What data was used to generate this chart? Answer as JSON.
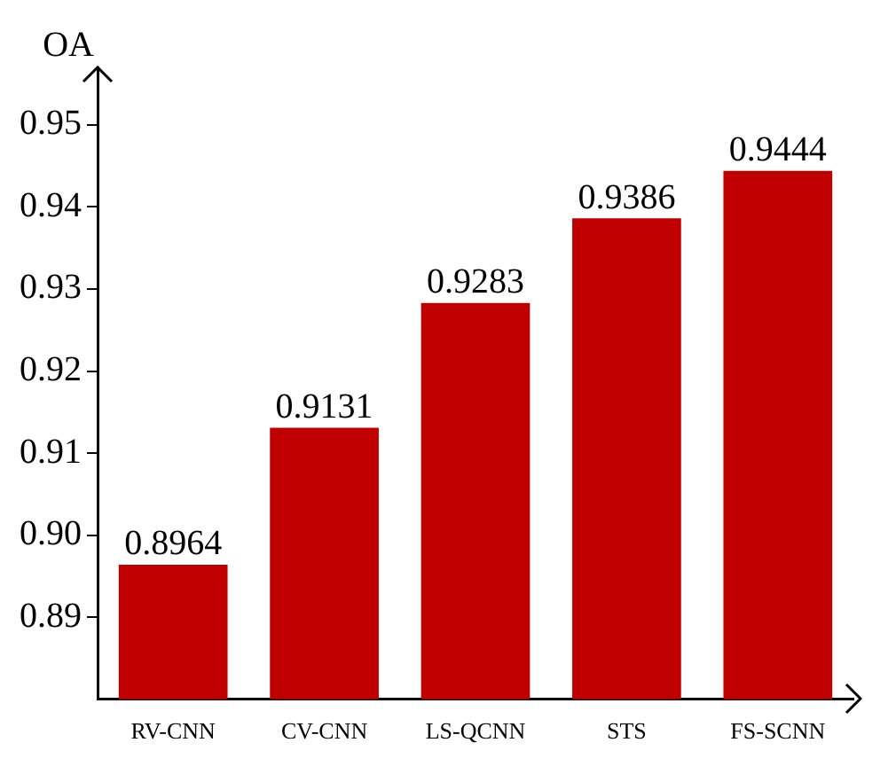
{
  "chart_data": {
    "type": "bar",
    "ylabel": "OA",
    "categories": [
      "RV-CNN",
      "CV-CNN",
      "LS-QCNN",
      "STS",
      "FS-SCNN"
    ],
    "values": [
      0.8964,
      0.9131,
      0.9283,
      0.9386,
      0.9444
    ],
    "color": "#c00000",
    "ylim": [
      0.88,
      0.957
    ],
    "yticks": [
      0.89,
      {
        "value": 0.9,
        "label": "0.90"
      },
      0.91,
      0.92,
      0.93,
      0.94,
      0.95
    ],
    "data_labels": true,
    "grid": false,
    "legend": false
  }
}
